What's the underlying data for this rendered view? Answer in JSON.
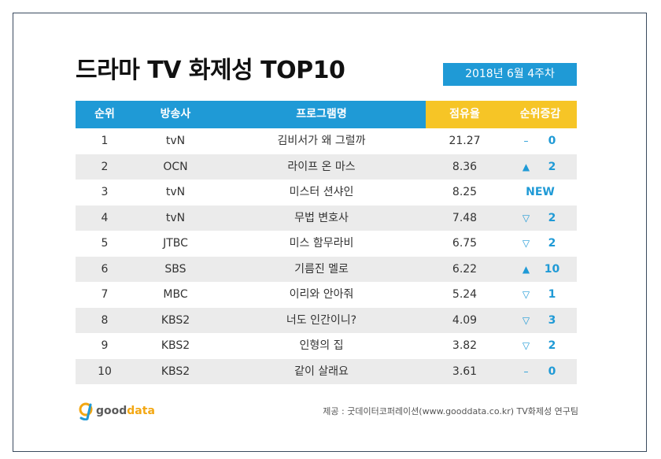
{
  "title": "드라마 TV 화제성 TOP10",
  "week": "2018년  6월 4주차",
  "headers": {
    "rank": "순위",
    "network": "방송사",
    "program": "프로그램명",
    "share": "점유율",
    "change": "순위증감"
  },
  "rows": [
    {
      "rank": "1",
      "network": "tvN",
      "program": "김비서가 왜 그럴까",
      "share": "21.27",
      "arrow": "–",
      "diff": "0",
      "trend": "same"
    },
    {
      "rank": "2",
      "network": "OCN",
      "program": "라이프 온 마스",
      "share": "8.36",
      "arrow": "▲",
      "diff": "2",
      "trend": "up"
    },
    {
      "rank": "3",
      "network": "tvN",
      "program": "미스터 션샤인",
      "share": "8.25",
      "arrow": "",
      "diff": "NEW",
      "trend": "new"
    },
    {
      "rank": "4",
      "network": "tvN",
      "program": "무법 변호사",
      "share": "7.48",
      "arrow": "▽",
      "diff": "2",
      "trend": "down"
    },
    {
      "rank": "5",
      "network": "JTBC",
      "program": "미스 함무라비",
      "share": "6.75",
      "arrow": "▽",
      "diff": "2",
      "trend": "down"
    },
    {
      "rank": "6",
      "network": "SBS",
      "program": "기름진 멜로",
      "share": "6.22",
      "arrow": "▲",
      "diff": "10",
      "trend": "up"
    },
    {
      "rank": "7",
      "network": "MBC",
      "program": "이리와 안아줘",
      "share": "5.24",
      "arrow": "▽",
      "diff": "1",
      "trend": "down"
    },
    {
      "rank": "8",
      "network": "KBS2",
      "program": "너도 인간이니?",
      "share": "4.09",
      "arrow": "▽",
      "diff": "3",
      "trend": "down"
    },
    {
      "rank": "9",
      "network": "KBS2",
      "program": "인형의 집",
      "share": "3.82",
      "arrow": "▽",
      "diff": "2",
      "trend": "down"
    },
    {
      "rank": "10",
      "network": "KBS2",
      "program": "같이 살래요",
      "share": "3.61",
      "arrow": "–",
      "diff": "0",
      "trend": "same"
    }
  ],
  "logo": {
    "good": "good",
    "data": "data"
  },
  "source": "제공 : 굿데이터코퍼레이션(www.gooddata.co.kr) TV화제성 연구팀",
  "colors": {
    "accent": "#1f9ad6",
    "highlight": "#f6c526",
    "alt_row": "#ebebeb"
  }
}
